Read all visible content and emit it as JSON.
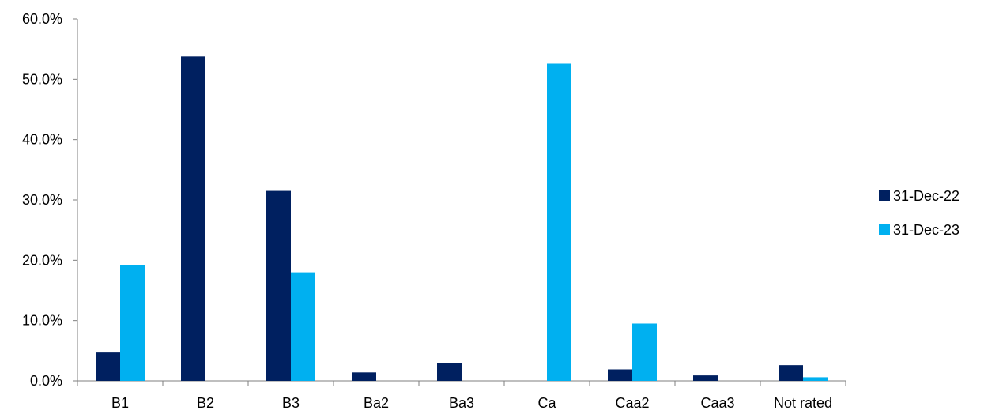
{
  "chart_data": {
    "type": "bar",
    "categories": [
      "B1",
      "B2",
      "B3",
      "Ba2",
      "Ba3",
      "Ca",
      "Caa2",
      "Caa3",
      "Not rated"
    ],
    "series": [
      {
        "name": "31-Dec-22",
        "color": "#002060",
        "values": [
          4.7,
          53.8,
          31.5,
          1.4,
          3.0,
          0.0,
          1.9,
          0.9,
          2.6
        ]
      },
      {
        "name": "31-Dec-23",
        "color": "#00B0F0",
        "values": [
          19.2,
          0.0,
          18.0,
          0.0,
          0.0,
          52.6,
          9.5,
          0.0,
          0.6
        ]
      }
    ],
    "ylim": [
      0,
      60
    ],
    "y_ticks": [
      0,
      10,
      20,
      30,
      40,
      50,
      60
    ],
    "y_tick_labels": [
      "0.0%",
      "10.0%",
      "20.0%",
      "30.0%",
      "40.0%",
      "50.0%",
      "60.0%"
    ],
    "legend_position": "right",
    "grid": false
  }
}
